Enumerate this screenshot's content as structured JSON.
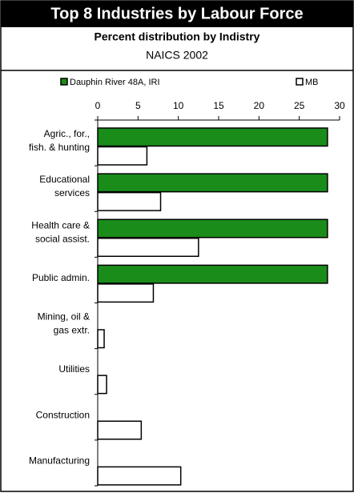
{
  "chart_data": {
    "type": "hbar",
    "title": "Top 8 Industries by Labour Force",
    "subtitle": "Percent distribution by Indistry",
    "subtitle2": "NAICS 2002",
    "categories": [
      [
        "Agric., for.,",
        "fish. & hunting"
      ],
      [
        "Educational",
        "services"
      ],
      [
        "Health care &",
        "social assist."
      ],
      [
        "Public admin."
      ],
      [
        "Mining, oil &",
        "gas extr."
      ],
      [
        "Utilities"
      ],
      [
        "Construction"
      ],
      [
        "Manufacturing"
      ]
    ],
    "series": [
      {
        "name": "Dauphin River 48A, IRI",
        "color": "#1a8c1a",
        "values": [
          28.5,
          28.5,
          28.5,
          28.5,
          null,
          null,
          null,
          null
        ]
      },
      {
        "name": "MB",
        "color": "#ffffff",
        "values": [
          6.1,
          7.8,
          12.5,
          6.9,
          0.8,
          1.1,
          5.4,
          10.3
        ]
      }
    ],
    "xlim": [
      0,
      30
    ],
    "xticks": [
      0,
      5,
      10,
      15,
      20,
      25,
      30
    ],
    "legend": "top"
  }
}
